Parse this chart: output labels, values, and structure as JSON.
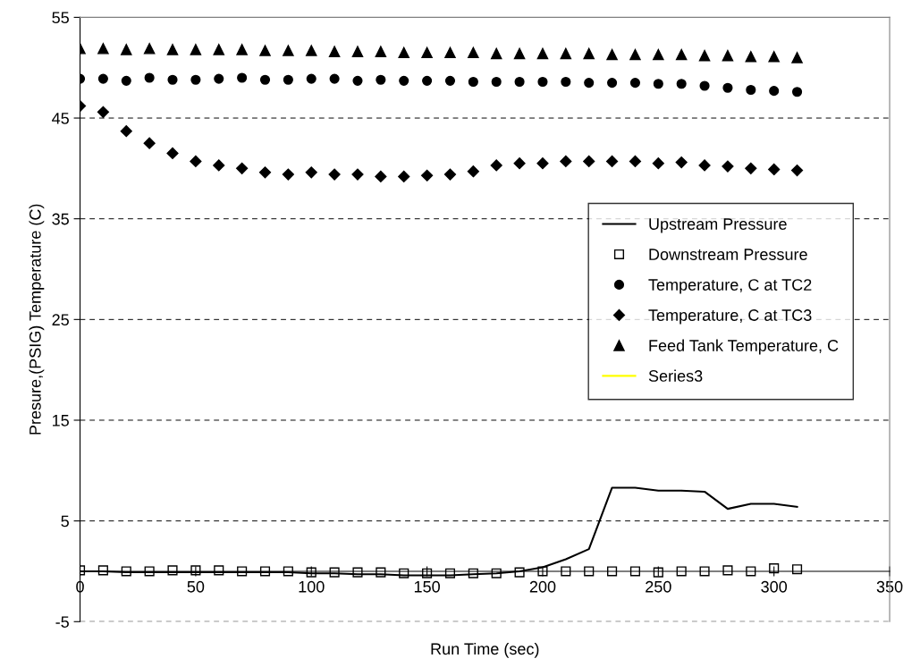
{
  "chart_data": {
    "type": "scatter",
    "xlabel": "Run Time (sec)",
    "ylabel": "Presure,(PSIG) Temperature (C)",
    "x": [
      0,
      10,
      20,
      30,
      40,
      50,
      60,
      70,
      80,
      90,
      100,
      110,
      120,
      130,
      140,
      150,
      160,
      170,
      180,
      190,
      200,
      210,
      220,
      230,
      240,
      250,
      260,
      270,
      280,
      290,
      300,
      310
    ],
    "series": [
      {
        "name": "Upstream Pressure",
        "type": "line",
        "marker": "none",
        "line_style": "solid",
        "color": "#000000",
        "values": [
          0.0,
          0.0,
          -0.1,
          -0.1,
          -0.1,
          -0.1,
          -0.1,
          -0.1,
          -0.1,
          -0.1,
          -0.2,
          -0.2,
          -0.3,
          -0.3,
          -0.4,
          -0.4,
          -0.4,
          -0.3,
          -0.2,
          0.0,
          0.4,
          1.2,
          2.2,
          8.3,
          8.3,
          8.0,
          8.0,
          7.9,
          6.2,
          6.7,
          6.7,
          6.4
        ]
      },
      {
        "name": "Downstream Pressure",
        "marker": "square",
        "color": "#000000",
        "values": [
          0.1,
          0.1,
          0.0,
          0.0,
          0.1,
          0.1,
          0.1,
          0.0,
          0.0,
          0.0,
          -0.1,
          -0.1,
          -0.1,
          -0.1,
          -0.2,
          -0.2,
          -0.2,
          -0.2,
          -0.2,
          -0.1,
          0.0,
          0.0,
          0.0,
          0.0,
          0.0,
          -0.1,
          0.0,
          0.0,
          0.1,
          0.0,
          0.3,
          0.2
        ]
      },
      {
        "name": "Temperature, C at TC2",
        "marker": "circle",
        "color": "#000000",
        "values": [
          48.9,
          48.9,
          48.7,
          49.0,
          48.8,
          48.8,
          48.9,
          49.0,
          48.8,
          48.8,
          48.9,
          48.9,
          48.7,
          48.8,
          48.7,
          48.7,
          48.7,
          48.6,
          48.6,
          48.6,
          48.6,
          48.6,
          48.5,
          48.5,
          48.5,
          48.4,
          48.4,
          48.2,
          48.0,
          47.8,
          47.7,
          47.6
        ]
      },
      {
        "name": "Temperature, C at TC3",
        "marker": "diamond",
        "color": "#000000",
        "values": [
          46.2,
          45.6,
          43.7,
          42.5,
          41.5,
          40.7,
          40.3,
          40.0,
          39.6,
          39.4,
          39.6,
          39.4,
          39.4,
          39.2,
          39.2,
          39.3,
          39.4,
          39.7,
          40.3,
          40.5,
          40.5,
          40.7,
          40.7,
          40.7,
          40.7,
          40.5,
          40.6,
          40.3,
          40.2,
          40.0,
          39.9,
          39.8
        ]
      },
      {
        "name": "Feed Tank Temperature, C",
        "marker": "triangle",
        "color": "#000000",
        "values": [
          51.9,
          51.9,
          51.8,
          51.9,
          51.8,
          51.8,
          51.8,
          51.8,
          51.7,
          51.7,
          51.7,
          51.6,
          51.6,
          51.6,
          51.5,
          51.5,
          51.5,
          51.5,
          51.4,
          51.4,
          51.4,
          51.4,
          51.4,
          51.3,
          51.3,
          51.3,
          51.3,
          51.2,
          51.2,
          51.1,
          51.1,
          51.0
        ]
      },
      {
        "name": "Series3",
        "type": "line",
        "marker": "none",
        "line_style": "solid",
        "color": "#ffff00",
        "values": [
          null,
          null,
          null,
          null,
          null,
          null,
          null,
          null,
          null,
          null,
          null,
          null,
          null,
          null,
          null,
          null,
          null,
          null,
          null,
          null,
          null,
          null,
          null,
          null,
          null,
          null,
          null,
          null,
          null,
          null,
          null,
          null
        ]
      }
    ],
    "xlim": [
      0,
      350
    ],
    "xticks": [
      0,
      50,
      100,
      150,
      200,
      250,
      300,
      350
    ],
    "ylim": [
      -5,
      55
    ],
    "yticks": [
      -5,
      5,
      15,
      25,
      35,
      45,
      55
    ],
    "grid": "y",
    "legend": "right"
  }
}
